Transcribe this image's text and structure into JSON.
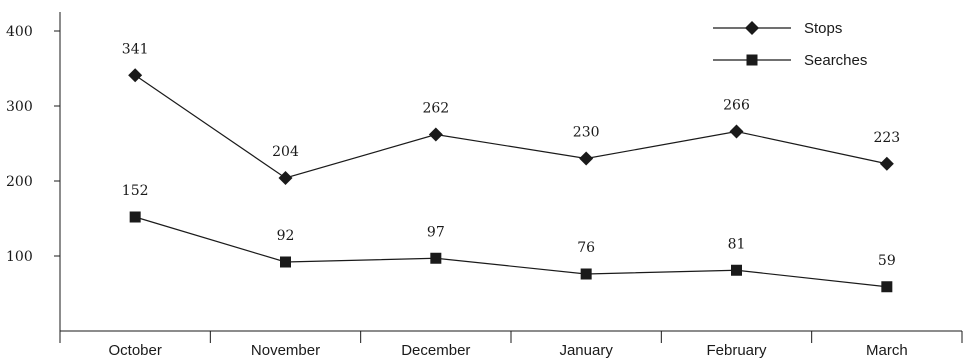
{
  "chart_data": {
    "type": "line",
    "title": "",
    "xlabel": "",
    "ylabel": "",
    "categories": [
      "October",
      "November",
      "December",
      "January",
      "February",
      "March"
    ],
    "ylim": [
      0,
      400
    ],
    "yticks": [
      100,
      200,
      300,
      400
    ],
    "grid": false,
    "legend_position": "top-right",
    "series": [
      {
        "name": "Stops",
        "marker": "diamond",
        "values": [
          341,
          204,
          262,
          230,
          266,
          223
        ]
      },
      {
        "name": "Searches",
        "marker": "square",
        "values": [
          152,
          92,
          97,
          76,
          81,
          59
        ]
      }
    ],
    "colors": {
      "line": "#1a1a1a",
      "marker": "#1a1a1a"
    }
  }
}
